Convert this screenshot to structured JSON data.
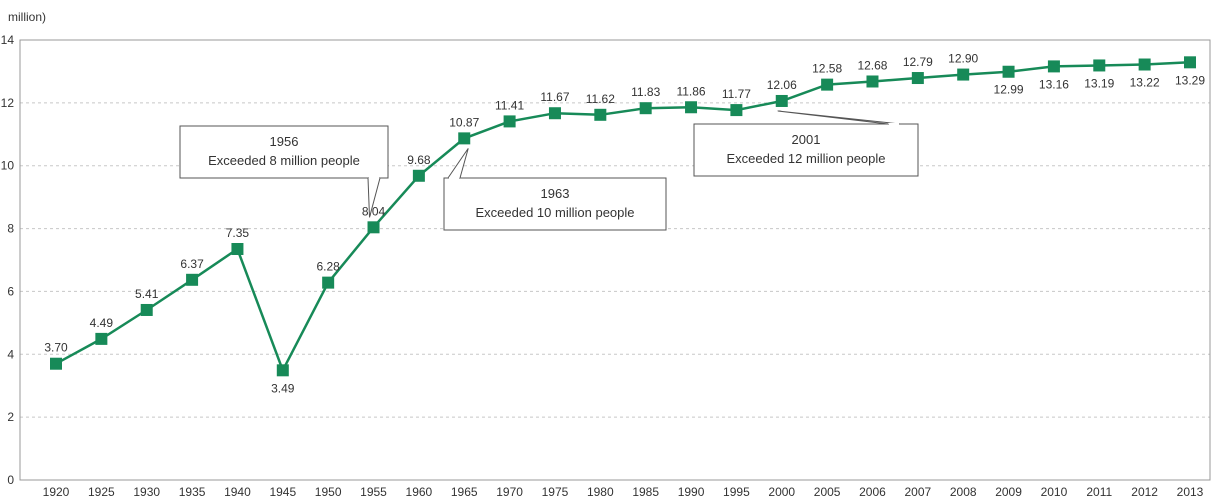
{
  "chart_data": {
    "type": "line",
    "ylabel": "million)",
    "ylim": [
      0,
      14
    ],
    "yticks": [
      "0",
      "2",
      "4",
      "6",
      "8",
      "10",
      "12",
      "14"
    ],
    "ytick_labels": [
      "0",
      "2",
      "4",
      "6",
      "8",
      "10",
      "12",
      "14"
    ],
    "grid": true,
    "series_color": "#178a58",
    "categories": [
      "1920",
      "1925",
      "1930",
      "1935",
      "1940",
      "1945",
      "1950",
      "1955",
      "1960",
      "1965",
      "1970",
      "1975",
      "1980",
      "1985",
      "1990",
      "1995",
      "2000",
      "2005",
      "2006",
      "2007",
      "2008",
      "2009",
      "2010",
      "2011",
      "2012",
      "2013"
    ],
    "values": [
      3.7,
      4.49,
      5.41,
      6.37,
      7.35,
      3.49,
      6.28,
      8.04,
      9.68,
      10.87,
      11.41,
      11.67,
      11.62,
      11.83,
      11.86,
      11.77,
      12.06,
      12.58,
      12.68,
      12.79,
      12.9,
      12.99,
      13.16,
      13.19,
      13.22,
      13.29
    ],
    "value_labels": [
      "3.70",
      "4.49",
      "5.41",
      "6.37",
      "7.35",
      "3.49",
      "6.28",
      "8.04",
      "9.68",
      "10.87",
      "11.41",
      "11.67",
      "11.62",
      "11.83",
      "11.86",
      "11.77",
      "12.06",
      "12.58",
      "12.68",
      "12.79",
      "12.90",
      "12.99",
      "13.16",
      "13.19",
      "13.22",
      "13.29"
    ],
    "annotations": [
      {
        "year": "1956",
        "text": "Exceeded 8 million people",
        "target": "1955"
      },
      {
        "year": "1963",
        "text": "Exceeded 10 million people",
        "target": "1965"
      },
      {
        "year": "2001",
        "text": "Exceeded 12 million people",
        "target": "2000"
      }
    ]
  }
}
